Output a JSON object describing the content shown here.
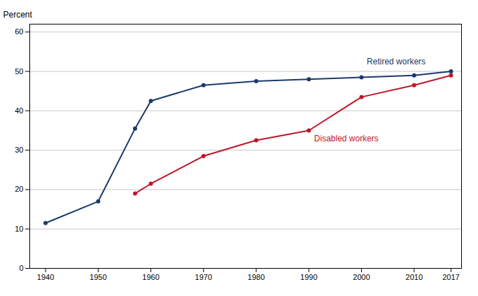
{
  "chart_data": {
    "type": "line",
    "ylabel": "Percent",
    "x": [
      1940,
      1950,
      1957,
      1960,
      1970,
      1980,
      1990,
      2000,
      2010,
      2017
    ],
    "series": [
      {
        "name": "Retired workers",
        "color": "#1b3a6b",
        "values": [
          11.5,
          17.0,
          35.5,
          42.5,
          46.5,
          47.5,
          48.0,
          48.5,
          49.0,
          50.0
        ]
      },
      {
        "name": "Disabled workers",
        "color": "#c0152a",
        "values": [
          null,
          null,
          19.0,
          21.5,
          28.5,
          32.5,
          35.0,
          43.5,
          46.5,
          49.0
        ]
      }
    ],
    "annotations": [
      {
        "text": "Retired workers",
        "x": 2001,
        "y": 52.5,
        "color": "#1b3a6b"
      },
      {
        "text": "Disabled workers",
        "x": 1991,
        "y": 33.0,
        "color": "#c0152a"
      }
    ],
    "xlim": [
      1937,
      2019
    ],
    "ylim": [
      0,
      62
    ],
    "xticks": [
      1940,
      1950,
      1960,
      1970,
      1980,
      1990,
      2000,
      2010,
      2017
    ],
    "yticks": [
      0,
      10,
      20,
      30,
      40,
      50,
      60
    ],
    "grid": "y",
    "marker": "circle"
  }
}
